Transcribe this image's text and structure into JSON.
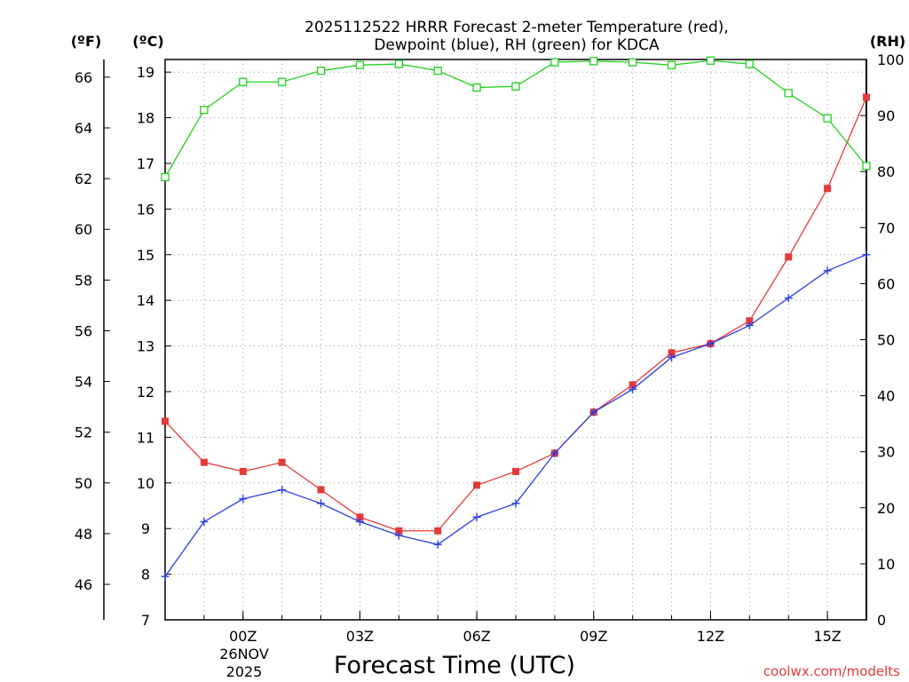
{
  "chart_data": {
    "type": "line",
    "title": "2025112522 HRRR Forecast 2-meter Temperature (red),",
    "subtitle": "Dewpoint (blue), RH (green) for KDCA",
    "xlabel": "Forecast Time (UTC)",
    "left_unit_f": "(ºF)",
    "left_unit_c": "(ºC)",
    "right_unit": "(RH)",
    "credit": "coolwx.com/modelts",
    "date_label_1": "26NOV",
    "date_label_2": "2025",
    "x_hours": [
      -2,
      -1,
      0,
      1,
      2,
      3,
      4,
      5,
      6,
      7,
      8,
      9,
      10,
      11,
      12,
      13,
      14,
      15,
      16
    ],
    "x_range": [
      -2,
      16
    ],
    "x_ticks": [
      {
        "hour": 0,
        "label": "00Z"
      },
      {
        "hour": 3,
        "label": "03Z"
      },
      {
        "hour": 6,
        "label": "06Z"
      },
      {
        "hour": 9,
        "label": "09Z"
      },
      {
        "hour": 12,
        "label": "12Z"
      },
      {
        "hour": 15,
        "label": "15Z"
      }
    ],
    "ylim_c": [
      7,
      19.4
    ],
    "ylim_rh": [
      0,
      100
    ],
    "c_ticks": [
      "7",
      "8",
      "9",
      "10",
      "11",
      "12",
      "13",
      "14",
      "15",
      "16",
      "17",
      "18",
      "19"
    ],
    "f_ticks": [
      "46",
      "48",
      "50",
      "52",
      "54",
      "56",
      "58",
      "60",
      "62",
      "64",
      "66"
    ],
    "rh_ticks": [
      "0",
      "10",
      "20",
      "30",
      "40",
      "50",
      "60",
      "70",
      "80",
      "90",
      "100"
    ],
    "series": [
      {
        "name": "Temperature",
        "color": "#e43a3a",
        "marker": "filled-square",
        "values_c": [
          11.35,
          10.45,
          10.25,
          10.45,
          9.85,
          9.25,
          8.95,
          8.95,
          9.95,
          10.25,
          10.65,
          11.55,
          12.15,
          12.85,
          13.05,
          13.55,
          14.95,
          16.45,
          18.45
        ]
      },
      {
        "name": "Dewpoint",
        "color": "#2a3fe0",
        "marker": "plus",
        "values_c": [
          7.95,
          9.15,
          9.65,
          9.85,
          9.55,
          9.15,
          8.85,
          8.65,
          9.25,
          9.55,
          10.65,
          11.55,
          12.05,
          12.75,
          13.05,
          13.45,
          14.05,
          14.65,
          15.0
        ]
      },
      {
        "name": "RH",
        "color": "#22d11f",
        "marker": "open-square",
        "values_rh": [
          79,
          91,
          96,
          96,
          98,
          99,
          99.2,
          98,
          95,
          95.2,
          99.5,
          99.7,
          99.5,
          99,
          99.8,
          99.2,
          94,
          89.5,
          81
        ]
      }
    ]
  }
}
